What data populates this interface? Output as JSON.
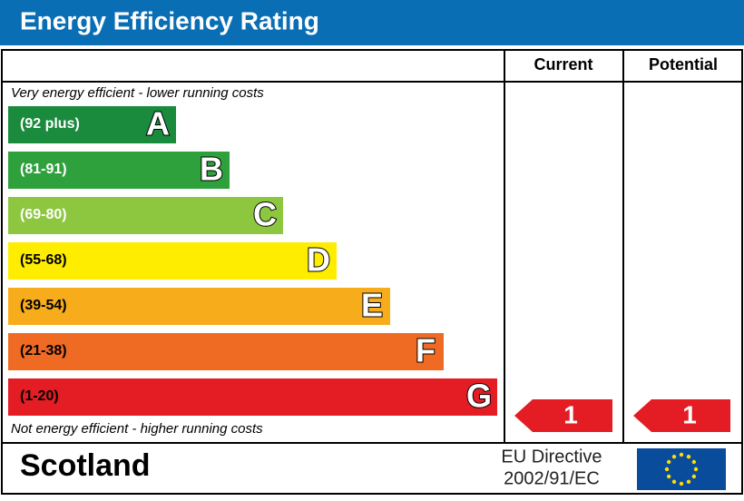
{
  "header": {
    "title": "Energy Efficiency Rating"
  },
  "columns": [
    "Current",
    "Potential"
  ],
  "top_note": "Very energy efficient - lower running costs",
  "bottom_note": "Not energy efficient - higher running costs",
  "bands": [
    {
      "range": "(92 plus)",
      "letter": "A",
      "color": "#1a8a3c"
    },
    {
      "range": "(81-91)",
      "letter": "B",
      "color": "#2ea03c"
    },
    {
      "range": "(69-80)",
      "letter": "C",
      "color": "#8dc63f"
    },
    {
      "range": "(55-68)",
      "letter": "D",
      "color": "#ffed00"
    },
    {
      "range": "(39-54)",
      "letter": "E",
      "color": "#f7ac1b"
    },
    {
      "range": "(21-38)",
      "letter": "F",
      "color": "#ef6b24"
    },
    {
      "range": "(1-20)",
      "letter": "G",
      "color": "#e31d23"
    }
  ],
  "ratings": {
    "current": 1,
    "potential": 1
  },
  "footer": {
    "region": "Scotland",
    "directive": [
      "EU Directive",
      "2002/91/EC"
    ]
  }
}
